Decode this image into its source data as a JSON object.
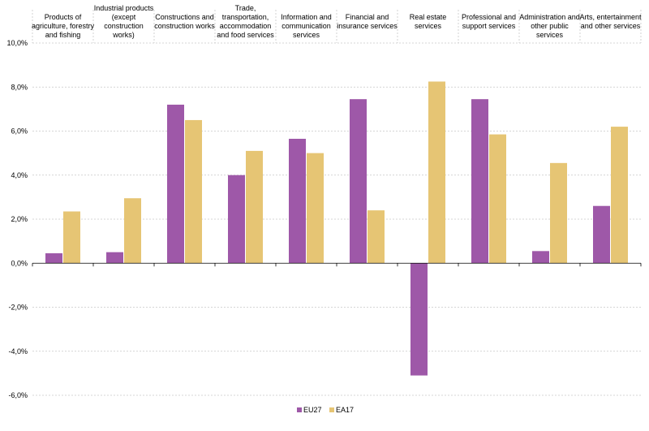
{
  "chart_data": {
    "type": "bar",
    "title": "",
    "xlabel": "",
    "ylabel": "",
    "ylim": [
      -6,
      10
    ],
    "yticks": [
      10,
      8,
      6,
      4,
      2,
      0,
      -2,
      -4,
      -6
    ],
    "ytick_labels": [
      "10,0%",
      "8,0%",
      "6,0%",
      "4,0%",
      "2,0%",
      "0,0%",
      "-2,0%",
      "-4,0%",
      "-6,0%"
    ],
    "grid": true,
    "legend_position": "bottom-center",
    "categories": [
      [
        "Products of",
        "agriculture, forestry",
        "and fishing"
      ],
      [
        "Industrial products",
        "(except",
        "construction",
        "works)"
      ],
      [
        "Constructions and",
        "construction works"
      ],
      [
        "Trade,",
        "transportation,",
        "accommodation",
        "and food services"
      ],
      [
        "Information and",
        "communication",
        "services"
      ],
      [
        "Financial and",
        "insurance services"
      ],
      [
        "Real estate",
        "services"
      ],
      [
        "Professional and",
        "support services"
      ],
      [
        "Administration and",
        "other public",
        "services"
      ],
      [
        "Arts, entertainment",
        "and other services"
      ]
    ],
    "series": [
      {
        "name": "EU27",
        "color": "#9e58a8",
        "values": [
          0.45,
          0.5,
          7.2,
          4.0,
          5.65,
          7.45,
          -5.1,
          7.45,
          0.55,
          2.6
        ]
      },
      {
        "name": "EA17",
        "color": "#e6c574",
        "values": [
          2.35,
          2.95,
          6.5,
          5.1,
          5.0,
          2.4,
          8.25,
          5.85,
          4.55,
          6.2
        ]
      }
    ]
  }
}
